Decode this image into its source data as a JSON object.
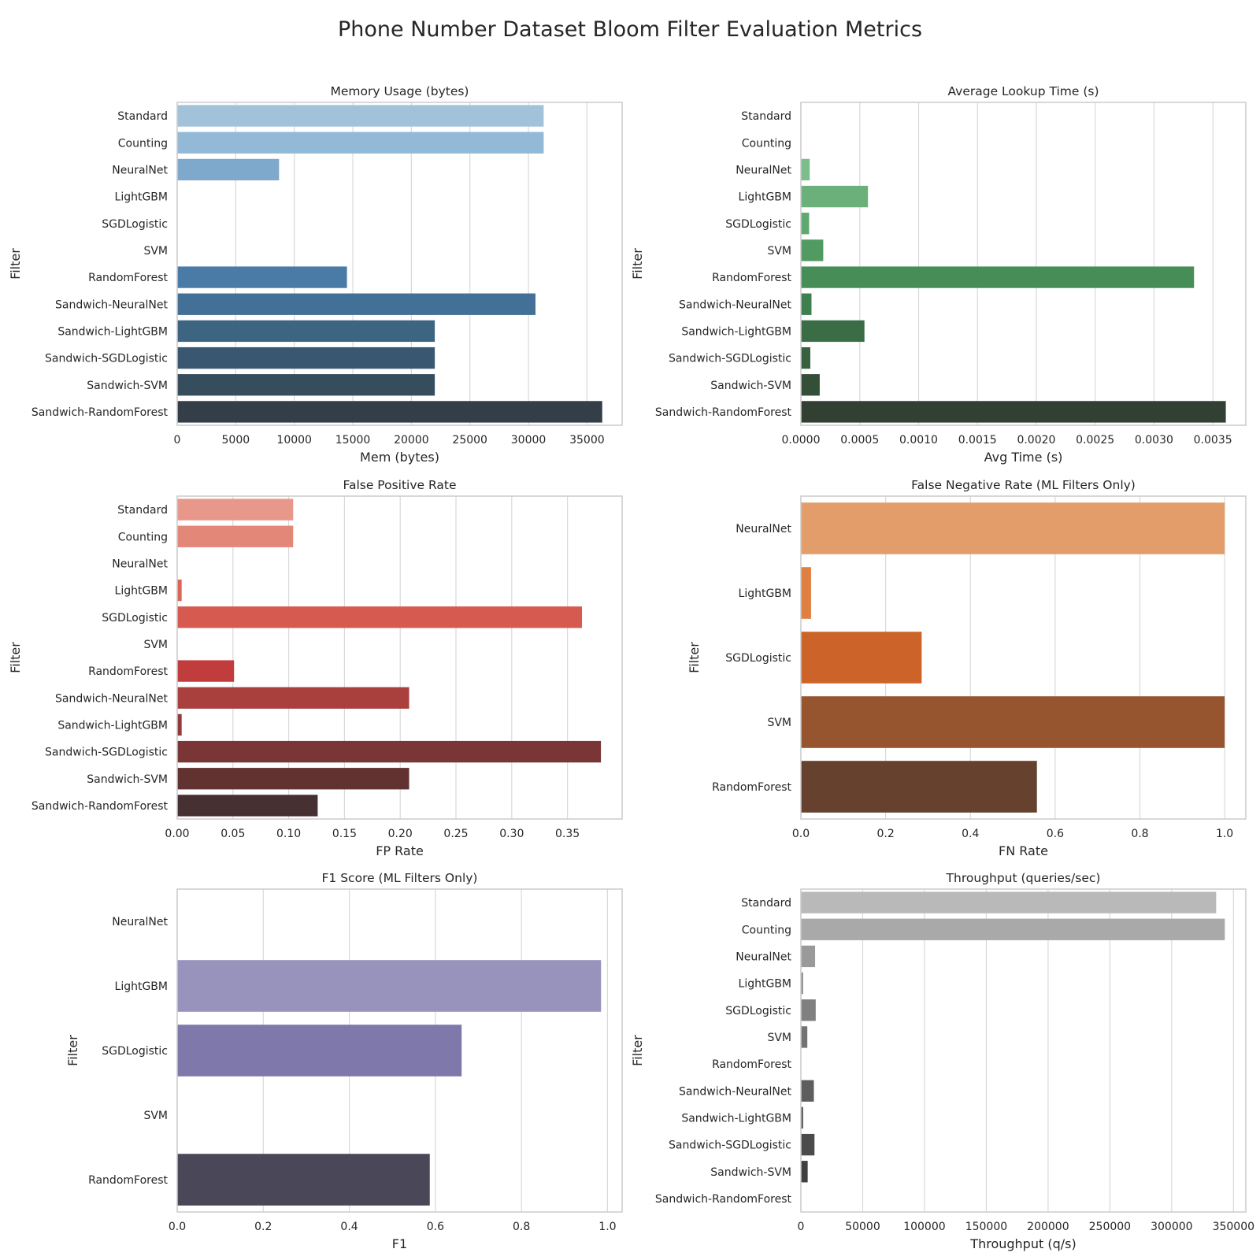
{
  "figure": {
    "title": "Phone Number Dataset Bloom Filter Evaluation Metrics"
  },
  "chart_data": [
    {
      "type": "bar",
      "orientation": "horizontal",
      "title": "Memory Usage (bytes)",
      "xlabel": "Mem (bytes)",
      "ylabel": "Filter",
      "categories": [
        "Standard",
        "Counting",
        "NeuralNet",
        "LightGBM",
        "SGDLogistic",
        "SVM",
        "RandomForest",
        "Sandwich-NeuralNet",
        "Sandwich-LightGBM",
        "Sandwich-SGDLogistic",
        "Sandwich-SVM",
        "Sandwich-RandomForest"
      ],
      "values": [
        31300,
        31300,
        8700,
        0,
        0,
        0,
        14500,
        30600,
        22000,
        22000,
        22000,
        36300
      ],
      "xlim": [
        0,
        38000
      ],
      "xticks": [
        0,
        5000,
        10000,
        15000,
        20000,
        25000,
        30000,
        35000
      ],
      "xtick_labels": [
        "0",
        "5000",
        "10000",
        "15000",
        "20000",
        "25000",
        "30000",
        "35000"
      ],
      "grid": true,
      "colors": [
        "#a2c2da",
        "#92b9d6",
        "#7fa9cc",
        "#6c9cc4",
        "#5b8fbd",
        "#5283b3",
        "#4a7ba7",
        "#437096",
        "#3d6480",
        "#395770",
        "#364d5e",
        "#343e49"
      ]
    },
    {
      "type": "bar",
      "orientation": "horizontal",
      "title": "Average Lookup Time (s)",
      "xlabel": "Avg Time (s)",
      "ylabel": "Filter",
      "categories": [
        "Standard",
        "Counting",
        "NeuralNet",
        "LightGBM",
        "SGDLogistic",
        "SVM",
        "RandomForest",
        "Sandwich-NeuralNet",
        "Sandwich-LightGBM",
        "Sandwich-SGDLogistic",
        "Sandwich-SVM",
        "Sandwich-RandomForest"
      ],
      "values": [
        5e-07,
        5e-07,
        7.5e-05,
        0.00057,
        7e-05,
        0.00019,
        0.00334,
        9e-05,
        0.00054,
        8e-05,
        0.00016,
        0.00361
      ],
      "xlim": [
        0,
        0.00378
      ],
      "xticks": [
        0,
        0.0005,
        0.001,
        0.0015,
        0.002,
        0.0025,
        0.003,
        0.0035
      ],
      "xtick_labels": [
        "0.0000",
        "0.0005",
        "0.0010",
        "0.0015",
        "0.0020",
        "0.0025",
        "0.0030",
        "0.0035"
      ],
      "grid": true,
      "colors": [
        "#a8ddb5",
        "#8fd0a0",
        "#79be8b",
        "#6bb07a",
        "#5ea96e",
        "#519a62",
        "#468d58",
        "#3d7f4e",
        "#3a6c45",
        "#36603e",
        "#334f37",
        "#323f33"
      ]
    },
    {
      "type": "bar",
      "orientation": "horizontal",
      "title": "False Positive Rate",
      "xlabel": "FP Rate",
      "ylabel": "Filter",
      "categories": [
        "Standard",
        "Counting",
        "NeuralNet",
        "LightGBM",
        "SGDLogistic",
        "SVM",
        "RandomForest",
        "Sandwich-NeuralNet",
        "Sandwich-LightGBM",
        "Sandwich-SGDLogistic",
        "Sandwich-SVM",
        "Sandwich-RandomForest"
      ],
      "values": [
        0.104,
        0.104,
        0.0,
        0.004,
        0.363,
        0.0,
        0.051,
        0.208,
        0.004,
        0.38,
        0.208,
        0.126
      ],
      "xlim": [
        0,
        0.399
      ],
      "xticks": [
        0,
        0.05,
        0.1,
        0.15,
        0.2,
        0.25,
        0.3,
        0.35
      ],
      "xtick_labels": [
        "0.00",
        "0.05",
        "0.10",
        "0.15",
        "0.20",
        "0.25",
        "0.30",
        "0.35"
      ],
      "grid": true,
      "colors": [
        "#e8988a",
        "#e38879",
        "#de7868",
        "#da6659",
        "#d75a50",
        "#d04c46",
        "#c13c3d",
        "#a9403e",
        "#913c3a",
        "#7a3636",
        "#623231",
        "#473031"
      ]
    },
    {
      "type": "bar",
      "orientation": "horizontal",
      "title": "False Negative Rate (ML Filters Only)",
      "xlabel": "FN Rate",
      "ylabel": "Filter",
      "categories": [
        "NeuralNet",
        "LightGBM",
        "SGDLogistic",
        "SVM",
        "RandomForest"
      ],
      "values": [
        1.0,
        0.024,
        0.285,
        1.0,
        0.557
      ],
      "xlim": [
        0,
        1.05
      ],
      "xticks": [
        0,
        0.2,
        0.4,
        0.6,
        0.8,
        1.0
      ],
      "xtick_labels": [
        "0.0",
        "0.2",
        "0.4",
        "0.6",
        "0.8",
        "1.0"
      ],
      "grid": true,
      "colors": [
        "#e39d6b",
        "#e07f42",
        "#cc6429",
        "#96542f",
        "#66412e"
      ]
    },
    {
      "type": "bar",
      "orientation": "horizontal",
      "title": "F1 Score (ML Filters Only)",
      "xlabel": "F1",
      "ylabel": "Filter",
      "categories": [
        "NeuralNet",
        "LightGBM",
        "SGDLogistic",
        "SVM",
        "RandomForest"
      ],
      "values": [
        0.0,
        0.985,
        0.661,
        0.0,
        0.587
      ],
      "xlim": [
        0,
        1.034
      ],
      "xticks": [
        0,
        0.2,
        0.4,
        0.6,
        0.8,
        1.0
      ],
      "xtick_labels": [
        "0.0",
        "0.2",
        "0.4",
        "0.6",
        "0.8",
        "1.0"
      ],
      "grid": true,
      "colors": [
        "#b0acd2",
        "#9893bd",
        "#7f78ab",
        "#625b85",
        "#4a4759"
      ]
    },
    {
      "type": "bar",
      "orientation": "horizontal",
      "title": "Throughput (queries/sec)",
      "xlabel": "Throughput (q/s)",
      "ylabel": "Filter",
      "categories": [
        "Standard",
        "Counting",
        "NeuralNet",
        "LightGBM",
        "SGDLogistic",
        "SVM",
        "RandomForest",
        "Sandwich-NeuralNet",
        "Sandwich-LightGBM",
        "Sandwich-SGDLogistic",
        "Sandwich-SVM",
        "Sandwich-RandomForest"
      ],
      "values": [
        336000,
        343000,
        11500,
        1800,
        12000,
        5200,
        300,
        10500,
        1800,
        11000,
        5500,
        280
      ],
      "xlim": [
        0,
        360000
      ],
      "xticks": [
        0,
        50000,
        100000,
        150000,
        200000,
        250000,
        300000,
        350000
      ],
      "xtick_labels": [
        "0",
        "50000",
        "100000",
        "150000",
        "200000",
        "250000",
        "300000",
        "350000"
      ],
      "grid": true,
      "colors": [
        "#b9b9b9",
        "#a9a9a9",
        "#9a9a9a",
        "#8d8d8d",
        "#808080",
        "#737373",
        "#686868",
        "#5e5e5e",
        "#555555",
        "#4b4b4b",
        "#404040",
        "#353535"
      ]
    }
  ]
}
